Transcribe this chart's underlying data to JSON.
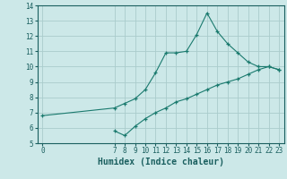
{
  "xlabel": "Humidex (Indice chaleur)",
  "ylabel": "",
  "bg_color": "#cce8e8",
  "grid_color": "#aacccc",
  "line_color": "#1a7a6e",
  "marker": "+",
  "xlim": [
    -0.5,
    23.5
  ],
  "ylim": [
    5,
    14
  ],
  "xticks": [
    0,
    7,
    8,
    9,
    10,
    11,
    12,
    13,
    14,
    15,
    16,
    17,
    18,
    19,
    20,
    21,
    22,
    23
  ],
  "yticks": [
    5,
    6,
    7,
    8,
    9,
    10,
    11,
    12,
    13,
    14
  ],
  "line1_x": [
    0,
    7,
    8,
    9,
    10,
    11,
    12,
    13,
    14,
    15,
    16,
    17,
    18,
    19,
    20,
    21,
    22,
    23
  ],
  "line1_y": [
    6.8,
    7.3,
    7.6,
    7.9,
    8.5,
    9.6,
    10.9,
    10.9,
    11.0,
    12.1,
    13.5,
    12.3,
    11.5,
    10.9,
    10.3,
    10.0,
    10.0,
    9.8
  ],
  "line2_x": [
    7,
    8,
    9,
    10,
    11,
    12,
    13,
    14,
    15,
    16,
    17,
    18,
    19,
    20,
    21,
    22,
    23
  ],
  "line2_y": [
    5.8,
    5.5,
    6.1,
    6.6,
    7.0,
    7.3,
    7.7,
    7.9,
    8.2,
    8.5,
    8.8,
    9.0,
    9.2,
    9.5,
    9.8,
    10.0,
    9.8
  ],
  "tick_fontsize": 5.5,
  "xlabel_fontsize": 7
}
